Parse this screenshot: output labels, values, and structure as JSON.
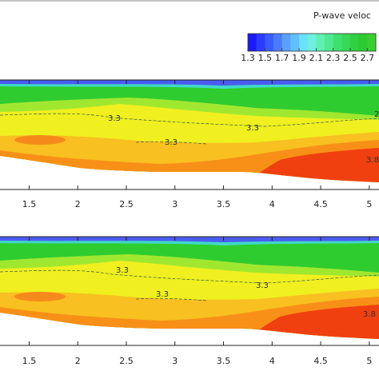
{
  "colorbar": {
    "title": "P-wave veloc",
    "clim": [
      1.3,
      2.8
    ],
    "ticks": [
      1.3,
      1.5,
      1.7,
      1.9,
      2.1,
      2.3,
      2.5,
      2.7
    ]
  },
  "chart_data": [
    {
      "type": "contour",
      "xlim": [
        1.2,
        5.1
      ],
      "xticks": [
        1.5,
        2,
        2.5,
        3,
        3.5,
        4,
        4.5,
        5
      ],
      "annotations": [
        "3.3",
        "3.3",
        "3.3",
        "2",
        "3.8"
      ]
    },
    {
      "type": "contour",
      "xlim": [
        1.2,
        5.1
      ],
      "xticks": [
        1.5,
        2,
        2.5,
        3,
        3.5,
        4,
        4.5,
        5
      ],
      "annotations": [
        "3.3",
        "3.3",
        "3.3",
        "3.8"
      ]
    }
  ]
}
